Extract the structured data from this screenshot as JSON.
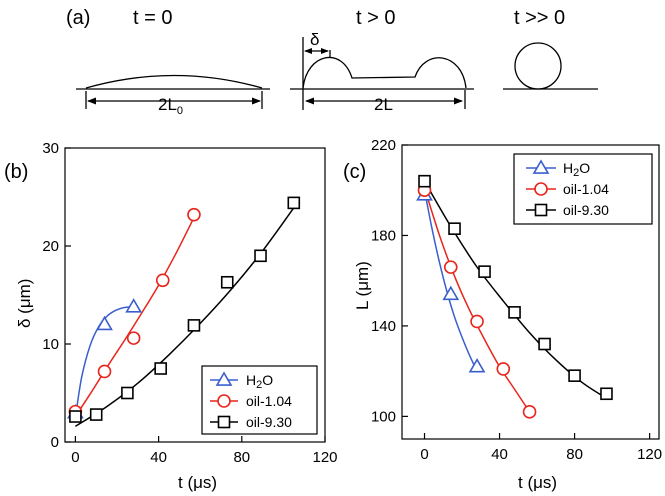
{
  "diagram": {
    "panel_label": "(a)",
    "states": [
      {
        "title": "t = 0",
        "dim_label": "2L",
        "dim_subscript": "0"
      },
      {
        "title": "t > 0",
        "dim_label": "2L",
        "delta_label": "δ"
      },
      {
        "title": "t >> 0"
      }
    ]
  },
  "chart_data": [
    {
      "type": "line",
      "panel_label": "(b)",
      "xlabel": "t (μs)",
      "ylabel": "δ (μm)",
      "xlim": [
        -5,
        120
      ],
      "ylim": [
        0,
        30
      ],
      "xticks": [
        0,
        40,
        80,
        120
      ],
      "yticks": [
        0,
        10,
        20,
        30
      ],
      "xtick_labels": [
        "0",
        "40",
        "80",
        "120"
      ],
      "ytick_labels": [
        "0",
        "10",
        "20",
        "30"
      ],
      "legend_location": "lower-right",
      "series": [
        {
          "name": "H2O",
          "legend_main": "H",
          "legend_sub": "2",
          "legend_rest": "O",
          "marker": "triangle",
          "color": "#3a5fcd",
          "x": [
            0,
            14,
            28
          ],
          "y": [
            3,
            12,
            13.8
          ],
          "fit_x": [
            0,
            3,
            7,
            11,
            15,
            19,
            23,
            28
          ],
          "fit_y": [
            2.5,
            6.6,
            9.8,
            11.7,
            12.8,
            13.4,
            13.7,
            13.8
          ]
        },
        {
          "name": "oil-1.04",
          "legend_main": "oil-1.04",
          "marker": "circle",
          "color": "#e8251b",
          "x": [
            0,
            14,
            28,
            42,
            57
          ],
          "y": [
            3.1,
            7.2,
            10.6,
            16.5,
            23.2
          ],
          "fit_x": [
            0,
            8,
            16,
            24,
            32,
            40,
            48,
            57
          ],
          "fit_y": [
            2.6,
            5.2,
            7.9,
            10.5,
            13.2,
            16.0,
            19.1,
            22.9
          ]
        },
        {
          "name": "oil-9.30",
          "legend_main": "oil-9.30",
          "marker": "square",
          "color": "#000000",
          "x": [
            0,
            10,
            25,
            41,
            57,
            73,
            89,
            105
          ],
          "y": [
            2.6,
            2.8,
            5.0,
            7.5,
            11.9,
            16.3,
            19.0,
            24.4
          ],
          "fit_x": [
            0,
            15,
            30,
            45,
            60,
            75,
            90,
            105
          ],
          "fit_y": [
            1.6,
            3.6,
            6.0,
            8.9,
            12.1,
            15.6,
            19.5,
            23.9
          ]
        }
      ]
    },
    {
      "type": "line",
      "panel_label": "(c)",
      "xlabel": "t (μs)",
      "ylabel": "L (μm)",
      "xlim": [
        -12,
        125
      ],
      "ylim": [
        90,
        220
      ],
      "xticks": [
        0,
        40,
        80,
        120
      ],
      "yticks": [
        100,
        140,
        180,
        220
      ],
      "xtick_labels": [
        "0",
        "40",
        "80",
        "120"
      ],
      "ytick_labels": [
        "100",
        "140",
        "180",
        "220"
      ],
      "legend_location": "top-right",
      "series": [
        {
          "name": "H2O",
          "legend_main": "H",
          "legend_sub": "2",
          "legend_rest": "O",
          "marker": "triangle",
          "color": "#3a5fcd",
          "x": [
            0,
            14,
            28
          ],
          "y": [
            198,
            154,
            122
          ],
          "fit_x": [
            0,
            4,
            8,
            12,
            16,
            20,
            24,
            28
          ],
          "fit_y": [
            200,
            183,
            168,
            155,
            144,
            135,
            127,
            120
          ]
        },
        {
          "name": "oil-1.04",
          "legend_main": "oil-1.04",
          "marker": "circle",
          "color": "#e8251b",
          "x": [
            0,
            14,
            28,
            42,
            56
          ],
          "y": [
            200,
            166,
            142,
            121,
            102
          ],
          "fit_x": [
            0,
            8,
            16,
            24,
            32,
            40,
            48,
            56
          ],
          "fit_y": [
            201,
            180,
            162,
            147,
            134,
            122,
            112,
            102
          ]
        },
        {
          "name": "oil-9.30",
          "legend_main": "oil-9.30",
          "marker": "square",
          "color": "#000000",
          "x": [
            0,
            16,
            32,
            48,
            64,
            80,
            97
          ],
          "y": [
            204,
            183,
            164,
            146,
            132,
            118,
            110
          ],
          "fit_x": [
            0,
            14,
            28,
            42,
            56,
            70,
            84,
            97
          ],
          "fit_y": [
            204,
            184,
            166,
            151,
            137,
            125,
            115,
            108
          ]
        }
      ]
    }
  ]
}
